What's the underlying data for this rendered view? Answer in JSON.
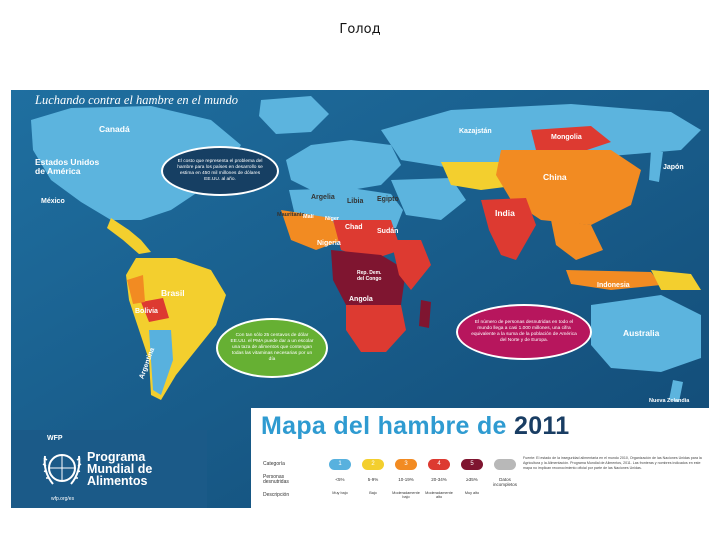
{
  "slide_title": "Голод",
  "poster": {
    "heading": "Luchando contra el hambre en el mundo",
    "title_main": "Mapa del hambre de",
    "title_year": "2011",
    "bubbles": {
      "blue": "El costo que representa el problema del hambre para los países en desarrollo se estima en 450 mil millones de dólares EE.UU. al año.",
      "green": "Con tan sólo 25 centavos de dólar EE.UU. el PMA puede dar a un escolar una taza de alimentos que contengan todas las vitaminas necesarias por un día",
      "pink": "El número de personas desnutridas en todo el mundo llega a casi 1.000 millones, una cifra equivalente a la suma de la población de América del Norte y de Europa."
    },
    "country_labels": {
      "canada": "Canadá",
      "usa": "Estados Unidos de América",
      "mexico": "México",
      "brasil": "Brasil",
      "bolivia": "Bolivia",
      "argentina": "Argentina",
      "china": "China",
      "mongolia": "Mongolia",
      "india": "India",
      "kazajstan": "Kazajstán",
      "japon": "Japón",
      "indonesia": "Indonesia",
      "australia": "Australia",
      "nueva_zelandia": "Nueva Zelandia",
      "chad": "Chad",
      "sudan": "Sudán",
      "nigeria": "Nigeria",
      "congo": "Rep. Dem. del Congo",
      "angola": "Angola",
      "argelia": "Argelia",
      "libia": "Libia",
      "egipto": "Egipto",
      "mauritania": "Mauritania",
      "mali": "Malí",
      "niger": "Níger"
    },
    "legend": {
      "row_category": "Categoría",
      "row_undernourished": "Personas desnutridas",
      "row_description": "Descripción",
      "categories": [
        {
          "label": "1",
          "color": "#58b1de",
          "pct": "<5%",
          "desc": "Muy bajo"
        },
        {
          "label": "2",
          "color": "#f3cf2e",
          "pct": "5-9%",
          "desc": "Bajo"
        },
        {
          "label": "3",
          "color": "#f28b22",
          "pct": "10-19%",
          "desc": "Moderadamente bajo"
        },
        {
          "label": "4",
          "color": "#dd3a31",
          "pct": "20-34%",
          "desc": "Moderadamente alto"
        },
        {
          "label": "5",
          "color": "#7f1530",
          "pct": "≥35%",
          "desc": "Muy alto"
        },
        {
          "label": "",
          "color": "#b8b8b8",
          "pct": "Datos incompletos",
          "desc": ""
        }
      ]
    },
    "notes": "Fuente: El estado de la inseguridad alimentaria en el mundo 2010, Organización de las Naciones Unidas para la Agricultura y la Alimentación. Programa Mundial de Alimentos, 2011. Las fronteras y nombres indicados en este mapa no implican reconocimiento oficial por parte de las Naciones Unidas.",
    "wfp": {
      "tag": "WFP",
      "name_line1": "Programa",
      "name_line2": "Mundial de",
      "name_line3": "Alimentos",
      "url": "wfp.org/es"
    }
  }
}
